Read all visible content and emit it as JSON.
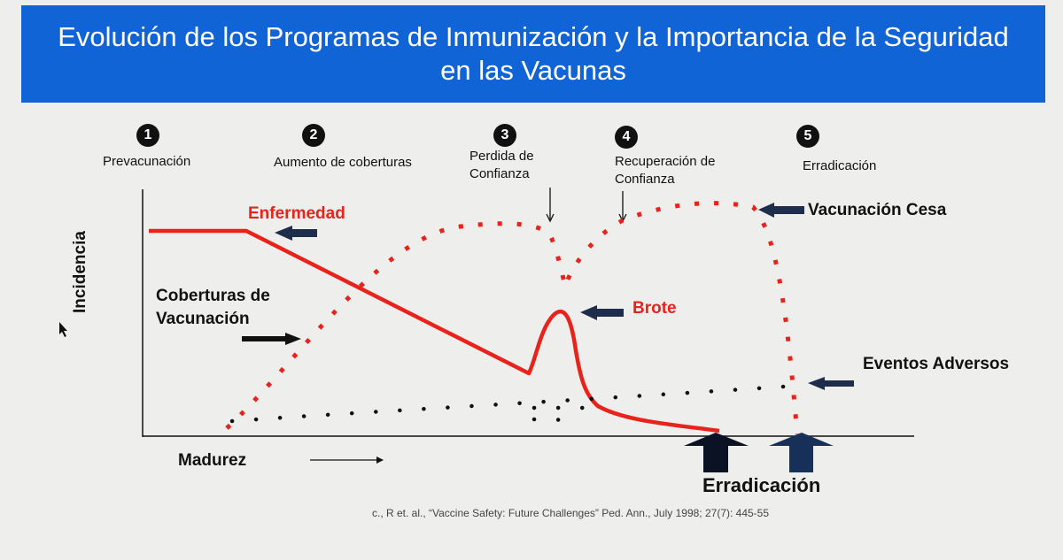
{
  "header": {
    "title_line1": "Evolución de los Programas de Inmunización y la Importancia de la Seguridad",
    "title_line2": "en las Vacunas"
  },
  "stages": [
    {
      "number": "1",
      "label": "Prevacunación"
    },
    {
      "number": "2",
      "label": "Aumento de coberturas"
    },
    {
      "number": "3",
      "label_line1": "Perdida de",
      "label_line2": "Confianza"
    },
    {
      "number": "4",
      "label_line1": "Recuperación de",
      "label_line2": "Confianza"
    },
    {
      "number": "5",
      "label": "Erradicación"
    }
  ],
  "labels": {
    "disease": "Enfermedad",
    "coverage_line1": "Coberturas de",
    "coverage_line2": "Vacunación",
    "outbreak": "Brote",
    "vaccination_stops": "Vacunación Cesa",
    "adverse_events": "Eventos Adversos",
    "y_axis": "Incidencia",
    "x_axis": "Madurez",
    "eradication": "Erradicación"
  },
  "citation": "c., R et. al., “Vaccine Safety: Future Challenges” Ped. Ann., July 1998; 27(7): 445-55",
  "colors": {
    "banner": "#1164d6",
    "disease_line": "#e8231c",
    "pointer_arrows": "#1f2d4d",
    "eradication_arrow_left": "#0a1224",
    "eradication_arrow_right": "#16305a"
  },
  "icons": [
    "pointer-arrow-icon",
    "up-arrow-icon",
    "mouse-cursor-icon"
  ]
}
